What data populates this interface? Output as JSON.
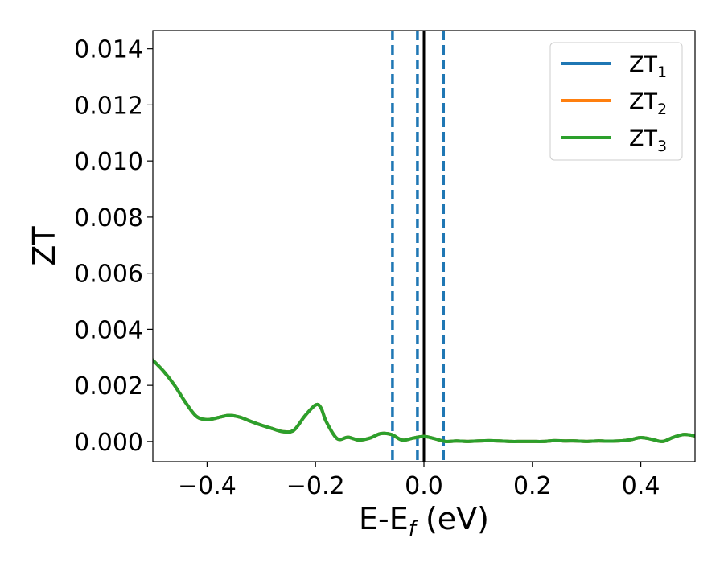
{
  "chart_data": {
    "type": "line",
    "title": "",
    "xlabel": {
      "main": "E-E",
      "sub": "f",
      "unit": " (eV)"
    },
    "ylabel": "ZT",
    "xlim": [
      -0.5,
      0.5
    ],
    "ylim": [
      -0.00072,
      0.01465
    ],
    "x_ticks": [
      -0.4,
      -0.2,
      0.0,
      0.2,
      0.4
    ],
    "x_tick_labels": [
      "−0.4",
      "−0.2",
      "0.0",
      "0.2",
      "0.4"
    ],
    "y_ticks": [
      0.0,
      0.002,
      0.004,
      0.006,
      0.008,
      0.01,
      0.012,
      0.014
    ],
    "y_tick_labels": [
      "0.000",
      "0.002",
      "0.004",
      "0.006",
      "0.008",
      "0.010",
      "0.012",
      "0.014"
    ],
    "grid": false,
    "legend_position": "top-right",
    "vertical_lines": [
      {
        "x": -0.058,
        "style": "dashed",
        "color": "#1f77b4"
      },
      {
        "x": -0.012,
        "style": "dashed",
        "color": "#1f77b4"
      },
      {
        "x": 0.0,
        "style": "solid",
        "color": "#000000"
      },
      {
        "x": 0.036,
        "style": "dashed",
        "color": "#1f77b4"
      }
    ],
    "x": [
      -0.5,
      -0.48,
      -0.46,
      -0.44,
      -0.42,
      -0.4,
      -0.38,
      -0.36,
      -0.34,
      -0.32,
      -0.3,
      -0.28,
      -0.26,
      -0.24,
      -0.22,
      -0.2,
      -0.19,
      -0.18,
      -0.16,
      -0.14,
      -0.12,
      -0.1,
      -0.08,
      -0.06,
      -0.04,
      -0.02,
      0.0,
      0.02,
      0.04,
      0.06,
      0.08,
      0.1,
      0.12,
      0.14,
      0.16,
      0.18,
      0.2,
      0.22,
      0.24,
      0.26,
      0.28,
      0.3,
      0.32,
      0.34,
      0.36,
      0.38,
      0.4,
      0.42,
      0.44,
      0.46,
      0.48,
      0.5
    ],
    "series": [
      {
        "name": "ZT",
        "name_sub": "1",
        "color": "#1f77b4",
        "values": [
          0.0029,
          0.0025,
          0.002,
          0.0014,
          0.0009,
          0.00078,
          0.00085,
          0.00093,
          0.00087,
          0.00072,
          0.00058,
          0.00046,
          0.00035,
          0.0004,
          0.0009,
          0.0013,
          0.0012,
          0.0007,
          0.0001,
          0.00015,
          5e-05,
          0.00012,
          0.00028,
          0.00025,
          5e-05,
          0.00012,
          0.00018,
          0.0001,
          0.0,
          2e-05,
          0.0,
          2e-05,
          3e-05,
          2e-05,
          0.0,
          0.0,
          0.0,
          0.0,
          3e-05,
          2e-05,
          2e-05,
          0.0,
          2e-05,
          1e-05,
          2e-05,
          6e-05,
          0.00014,
          8e-05,
          0.0,
          0.00015,
          0.00025,
          0.0002
        ]
      },
      {
        "name": "ZT",
        "name_sub": "2",
        "color": "#ff7f0e",
        "values": [
          0.0029,
          0.0025,
          0.002,
          0.0014,
          0.0009,
          0.00078,
          0.00085,
          0.00093,
          0.00087,
          0.00072,
          0.00058,
          0.00046,
          0.00035,
          0.0004,
          0.0009,
          0.0013,
          0.0012,
          0.0007,
          0.0001,
          0.00015,
          5e-05,
          0.00012,
          0.00028,
          0.00025,
          5e-05,
          0.00012,
          0.00018,
          0.0001,
          0.0,
          2e-05,
          0.0,
          2e-05,
          3e-05,
          2e-05,
          0.0,
          0.0,
          0.0,
          0.0,
          3e-05,
          2e-05,
          2e-05,
          0.0,
          2e-05,
          1e-05,
          2e-05,
          6e-05,
          0.00014,
          8e-05,
          0.0,
          0.00015,
          0.00025,
          0.0002
        ]
      },
      {
        "name": "ZT",
        "name_sub": "3",
        "color": "#2ca02c",
        "values": [
          0.0029,
          0.0025,
          0.002,
          0.0014,
          0.0009,
          0.00078,
          0.00085,
          0.00093,
          0.00087,
          0.00072,
          0.00058,
          0.00046,
          0.00035,
          0.0004,
          0.0009,
          0.0013,
          0.0012,
          0.0007,
          0.0001,
          0.00015,
          5e-05,
          0.00012,
          0.00028,
          0.00025,
          5e-05,
          0.00012,
          0.00018,
          0.0001,
          0.0,
          2e-05,
          0.0,
          2e-05,
          3e-05,
          2e-05,
          0.0,
          0.0,
          0.0,
          0.0,
          3e-05,
          2e-05,
          2e-05,
          0.0,
          2e-05,
          1e-05,
          2e-05,
          6e-05,
          0.00014,
          8e-05,
          0.0,
          0.00015,
          0.00025,
          0.0002
        ]
      }
    ]
  }
}
